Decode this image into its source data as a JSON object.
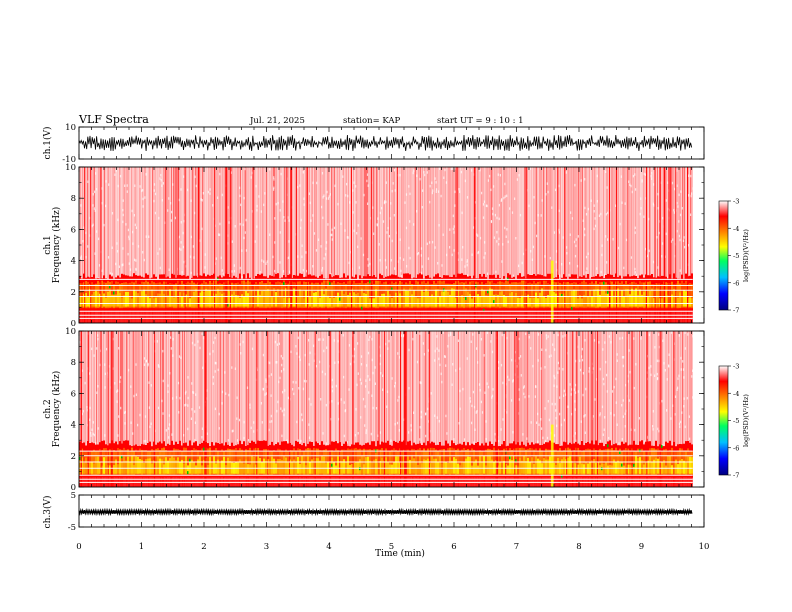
{
  "chart_data": {
    "type": "heatmap",
    "header": {
      "title": "VLF Spectra",
      "date": "Jul. 21, 2025",
      "station": "station= KAP",
      "start_ut": "start UT =  9 : 10 : 1"
    },
    "x_axis": {
      "label": "Time (min)",
      "range": [
        0,
        10
      ],
      "ticks": [
        "0",
        "1",
        "2",
        "3",
        "4",
        "5",
        "6",
        "7",
        "8",
        "9",
        "10"
      ],
      "data_end": 9.82
    },
    "panels": [
      {
        "id": "ch1-waveform",
        "type": "line",
        "ylabel": "ch.1(V)",
        "yrange": [
          -10,
          10
        ],
        "ytick_labels": [
          "10",
          "-10"
        ],
        "signal_amplitude": [
          -5,
          5
        ]
      },
      {
        "id": "ch1-spectrogram",
        "type": "heatmap",
        "ylabel": "ch.1\nFrequency (kHz)",
        "yrange": [
          0,
          10
        ],
        "ytick_labels": [
          "0",
          "2",
          "4",
          "6",
          "8",
          "10"
        ],
        "intense_band_khz": [
          0.8,
          3.0
        ],
        "horizontal_lines_khz": [
          0.3,
          0.5,
          0.75,
          1.25,
          1.7,
          2.1,
          2.4,
          2.8
        ],
        "colorbar": {
          "label": "log(PSD)(V²/Hz)",
          "range": [
            -7,
            -3
          ],
          "tick_labels": [
            "-3",
            "-4",
            "-5",
            "-6",
            "-7"
          ]
        }
      },
      {
        "id": "ch2-spectrogram",
        "type": "heatmap",
        "ylabel": "ch.2\nFrequency (kHz)",
        "yrange": [
          0,
          10
        ],
        "ytick_labels": [
          "0",
          "2",
          "4",
          "6",
          "8",
          "10"
        ],
        "intense_band_khz": [
          0.6,
          2.8
        ],
        "horizontal_lines_khz": [
          0.3,
          0.5,
          0.75,
          1.2,
          1.6,
          2.0,
          2.3
        ],
        "colorbar": {
          "label": "log(PSD)(V²/Hz)",
          "range": [
            -7,
            -3
          ],
          "tick_labels": [
            "-3",
            "-4",
            "-5",
            "-6",
            "-7"
          ]
        }
      },
      {
        "id": "ch3-waveform",
        "type": "line",
        "ylabel": "ch.3(V)",
        "yrange": [
          -5,
          5
        ],
        "ytick_labels": [
          "5",
          "-5"
        ],
        "signal_amplitude": [
          -0.9,
          0.3
        ]
      }
    ],
    "colors": {
      "sparse": "#ff5050",
      "red": "#ff0000",
      "orange": "#ff8000",
      "yellow": "#ffff00",
      "green": "#00c000",
      "white_line": "#ffffff"
    }
  }
}
